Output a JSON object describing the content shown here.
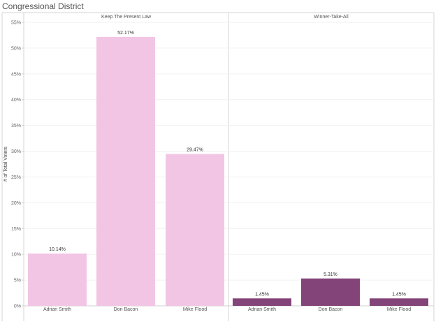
{
  "chart_data": {
    "type": "bar",
    "title": "Congressional District",
    "ylabel": "# of Total Voters",
    "xlabel": "",
    "ylim": [
      0,
      55
    ],
    "yticks": [
      0,
      5,
      10,
      15,
      20,
      25,
      30,
      35,
      40,
      45,
      50,
      55
    ],
    "tick_suffix": "%",
    "grid": true,
    "panels": [
      {
        "name": "Keep The Present Law",
        "color": "#F3C5E5",
        "categories": [
          "Adrian Smith",
          "Don Bacon",
          "Mike Flood"
        ],
        "values": [
          10.14,
          52.17,
          29.47
        ],
        "labels": [
          "10.14%",
          "52.17%",
          "29.47%"
        ]
      },
      {
        "name": "Winner-Take-All",
        "color": "#834479",
        "categories": [
          "Adrian Smith",
          "Don Bacon",
          "Mike Flood"
        ],
        "values": [
          1.45,
          5.31,
          1.45
        ],
        "labels": [
          "1.45%",
          "5.31%",
          "1.45%"
        ]
      }
    ]
  }
}
